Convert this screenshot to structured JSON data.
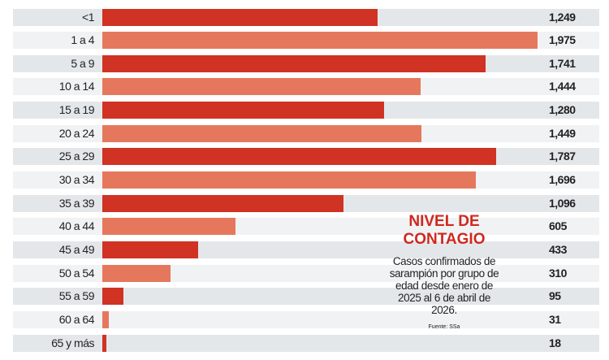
{
  "chart_data": {
    "type": "bar",
    "orientation": "horizontal",
    "title": "NIVEL DE CONTAGIO",
    "subtitle": "Casos confirmados de sarampión por grupo de edad desde enero de 2025 al 6 de abril de 2026.",
    "source": "Fuente: SSa",
    "categories": [
      "<1",
      "1 a 4",
      "5 a 9",
      "10 a 14",
      "15 a 19",
      "20 a 24",
      "25 a 29",
      "30 a 34",
      "35 a 39",
      "40 a 44",
      "45 a 49",
      "50 a 54",
      "55 a 59",
      "60 a 64",
      "65 y más"
    ],
    "values": [
      1249,
      1975,
      1741,
      1444,
      1280,
      1449,
      1787,
      1696,
      1096,
      605,
      433,
      310,
      95,
      31,
      18
    ],
    "value_labels": [
      "1,249",
      "1,975",
      "1,741",
      "1,444",
      "1,280",
      "1,449",
      "1,787",
      "1,696",
      "1,096",
      "605",
      "433",
      "310",
      "95",
      "31",
      "18"
    ],
    "xlim": [
      0,
      1975
    ],
    "colors": [
      "#d03224",
      "#e5785c"
    ],
    "grid": false,
    "legend": "none"
  }
}
